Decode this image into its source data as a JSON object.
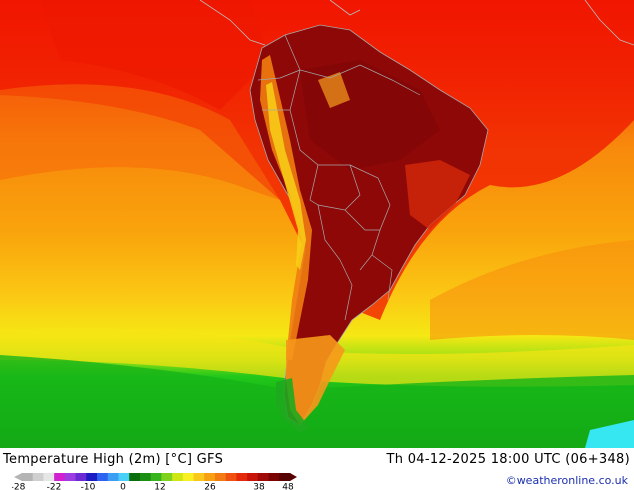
{
  "title": "Temperature High (2m) [°C] GFS",
  "datetime": "Th 04-12-2025 18:00 UTC (06+348)",
  "credit": "©weatheronline.co.uk",
  "legend": {
    "ticks": [
      "-28",
      "-22",
      "-10",
      "0",
      "12",
      "26",
      "38",
      "48"
    ],
    "colors": [
      "#b4b4b4",
      "#cfcfcf",
      "#e6e6e6",
      "#d020d0",
      "#9d3ce0",
      "#6a2bd4",
      "#1c1cc4",
      "#2e62f0",
      "#3c9ef2",
      "#48d0f8",
      "#0a6e0a",
      "#1c8e14",
      "#37b41e",
      "#7fd21c",
      "#cde614",
      "#f8f020",
      "#fac81c",
      "#f8a014",
      "#f47a14",
      "#f05010",
      "#e42a0a",
      "#c8140a",
      "#a00a08",
      "#7a0404",
      "#560202"
    ]
  },
  "colors": {
    "ocean_warm": "#f01a00",
    "ocean_mid": "#f89c0c",
    "ocean_cool": "#fad80c",
    "ocean_cold": "#1ac81a",
    "land_hot": "#8e0808",
    "borders": "#aaaaaa"
  }
}
